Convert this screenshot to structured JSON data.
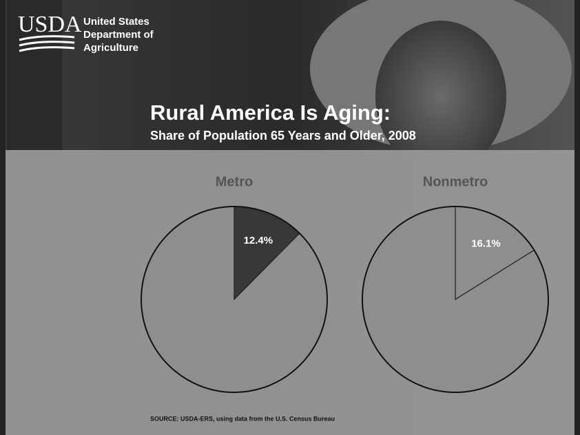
{
  "logo": {
    "mark": "USDA",
    "name": [
      "United States",
      "Department of",
      "Agriculture"
    ]
  },
  "title": "Rural America Is Aging:",
  "subtitle": "Share of Population 65 Years and Older, 2008",
  "source": "SOURCE: USDA-ERS, using data from the U.S. Census Bureau",
  "chart_data": [
    {
      "type": "pie",
      "title": "Metro",
      "values": [
        12.4,
        87.6
      ],
      "value_labels": [
        "12.4%",
        null
      ],
      "colors": [
        "#383838",
        "#8e8e8e"
      ]
    },
    {
      "type": "pie",
      "title": "Nonmetro",
      "values": [
        16.1,
        83.9
      ],
      "value_labels": [
        "16.1%",
        null
      ],
      "colors": [
        "#8e8e8e",
        "#8e8e8e"
      ]
    }
  ]
}
